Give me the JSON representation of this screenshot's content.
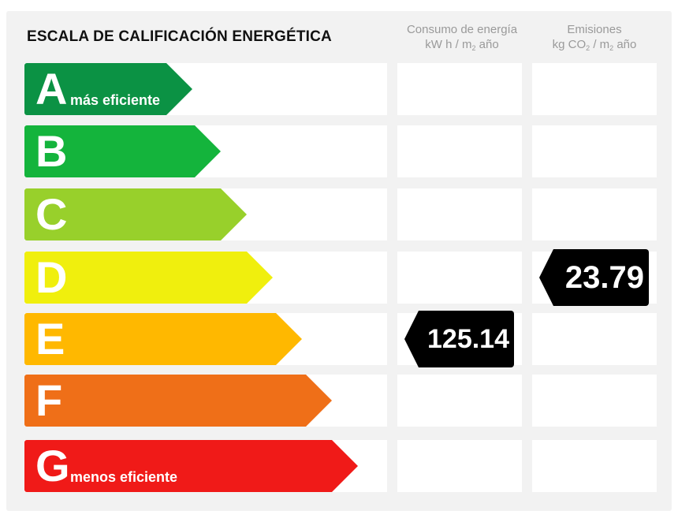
{
  "title": "ESCALA DE CALIFICACIÓN ENERGÉTICA",
  "columns": {
    "consumo": {
      "line1": "Consumo de energía",
      "line2a": "kW h / m",
      "line2sub": "2",
      "line2b": " año"
    },
    "emisiones": {
      "line1": "Emisiones",
      "line2a": "kg CO",
      "line2sub1": "2",
      "line2b": " / m",
      "line2sub2": "2",
      "line2c": " año"
    }
  },
  "ratings": [
    {
      "letter": "A",
      "desc": "más eficiente",
      "color": "#0b9244"
    },
    {
      "letter": "B",
      "desc": "",
      "color": "#14b43c"
    },
    {
      "letter": "C",
      "desc": "",
      "color": "#98d02b"
    },
    {
      "letter": "D",
      "desc": "",
      "color": "#f0ef0d"
    },
    {
      "letter": "E",
      "desc": "",
      "color": "#ffb800"
    },
    {
      "letter": "F",
      "desc": "",
      "color": "#ef6f18"
    },
    {
      "letter": "G",
      "desc": "menos eficiente",
      "color": "#f01a18"
    }
  ],
  "consumo_value": "125.14",
  "consumo_class": "E",
  "emisiones_value": "23.79",
  "emisiones_class": "D"
}
